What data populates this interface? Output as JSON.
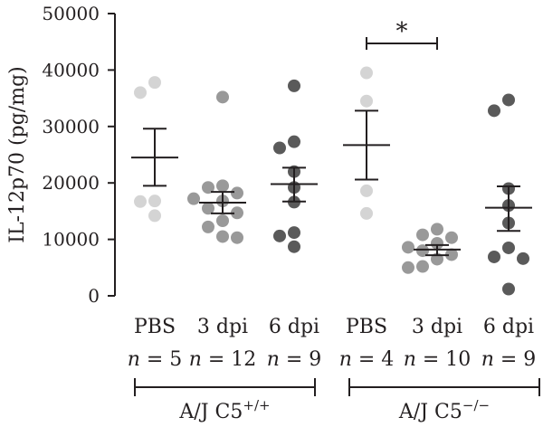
{
  "chart_data": {
    "type": "scatter",
    "ylabel": "IL-12p70 (pg/mg)",
    "ylim": [
      0,
      50000
    ],
    "yticks": [
      0,
      10000,
      20000,
      30000,
      40000,
      50000
    ],
    "ytick_labels": [
      "0",
      "10000",
      "20000",
      "30000",
      "40000",
      "50000"
    ],
    "grid": false,
    "categories": [
      {
        "label": "PBS",
        "n_label": "n",
        "n_value": "= 5",
        "color": "#d4d4d4",
        "values": [
          36000,
          37800,
          16800,
          16700,
          14200
        ],
        "mean": 24500,
        "error_low": 19500,
        "error_high": 29600
      },
      {
        "label": "3 dpi",
        "n_label": "n",
        "n_value": "= 12",
        "color": "#999999",
        "values": [
          35200,
          19500,
          19200,
          18200,
          17200,
          16800,
          15500,
          14700,
          13300,
          12200,
          10500,
          10300
        ],
        "mean": 16500,
        "error_low": 14600,
        "error_high": 18400
      },
      {
        "label": "6 dpi",
        "n_label": "n",
        "n_value": "= 9",
        "color": "#5a5a5a",
        "values": [
          37200,
          27300,
          26200,
          22000,
          19200,
          16600,
          11200,
          10600,
          8700
        ],
        "mean": 19800,
        "error_low": 16700,
        "error_high": 22700
      },
      {
        "label": "PBS",
        "n_label": "n",
        "n_value": "= 4",
        "color": "#d4d4d4",
        "values": [
          39500,
          34500,
          18600,
          14600
        ],
        "mean": 26700,
        "error_low": 20600,
        "error_high": 32800
      },
      {
        "label": "3 dpi",
        "n_label": "n",
        "n_value": "= 10",
        "color": "#999999",
        "values": [
          11800,
          10800,
          10300,
          9300,
          8600,
          8000,
          7300,
          6500,
          5200,
          5000
        ],
        "mean": 8200,
        "error_low": 7200,
        "error_high": 9000
      },
      {
        "label": "6 dpi",
        "n_label": "n",
        "n_value": "= 9",
        "color": "#5a5a5a",
        "values": [
          34700,
          32800,
          19000,
          16000,
          12900,
          8500,
          6900,
          6600,
          1200
        ],
        "mean": 15600,
        "error_low": 11500,
        "error_high": 19400
      }
    ],
    "groups": [
      {
        "label_main": "A/J C5",
        "label_sup": "+/+"
      },
      {
        "label_main": "A/J C5",
        "label_sup": "−/−"
      }
    ],
    "significance": {
      "label": "*",
      "from_category": 3,
      "to_category": 4
    }
  }
}
